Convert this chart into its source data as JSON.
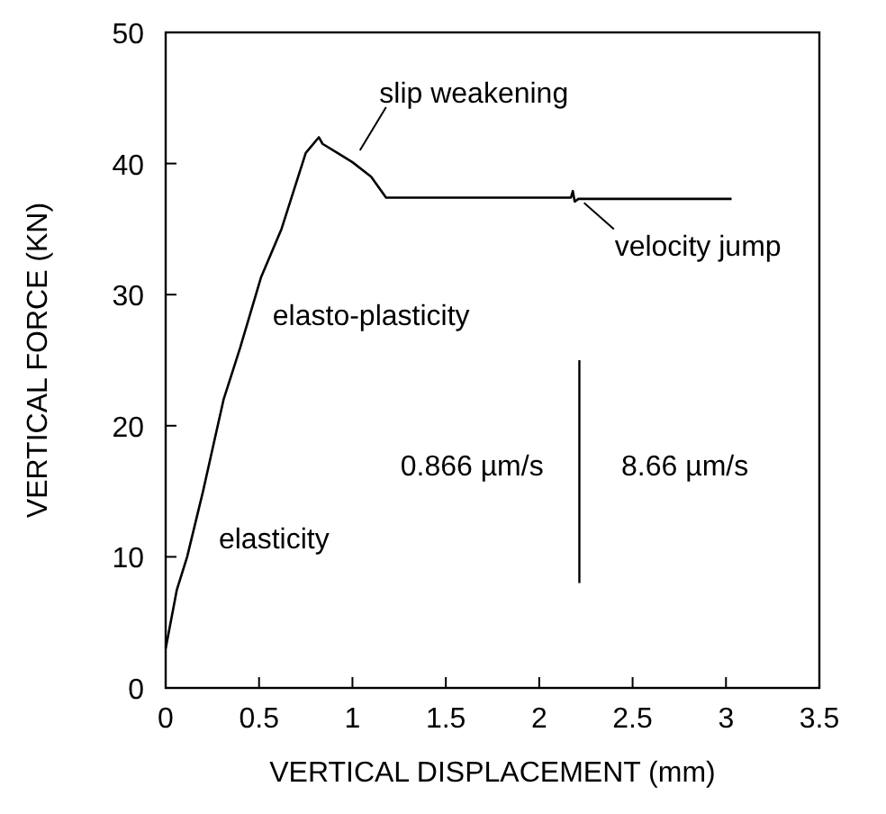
{
  "chart_data": {
    "type": "line",
    "xlabel": "VERTICAL DISPLACEMENT (mm)",
    "ylabel": "VERTICAL FORCE (KN)",
    "x": [
      0,
      0.06,
      0.115,
      0.2,
      0.31,
      0.4,
      0.51,
      0.62,
      0.75,
      0.82,
      0.84,
      0.92,
      1.0,
      1.1,
      1.18,
      1.5,
      2.0,
      2.17,
      2.18,
      2.19,
      2.21,
      2.5,
      3.03
    ],
    "series": [
      {
        "color": "#000000",
        "values": [
          3,
          7.5,
          10,
          15,
          22,
          26,
          31.3,
          35,
          40.8,
          42,
          41.5,
          40.8,
          40.1,
          39,
          37.4,
          37.4,
          37.4,
          37.4,
          37.9,
          37.1,
          37.3,
          37.3,
          37.3
        ]
      }
    ],
    "xlim": [
      0,
      3.5
    ],
    "ylim": [
      0,
      50
    ],
    "xticks": [
      0,
      0.5,
      1,
      1.5,
      2,
      2.5,
      3,
      3.5
    ],
    "yticks": [
      0,
      10,
      20,
      30,
      40,
      50
    ],
    "grid": false,
    "marker": "none",
    "line_style": "solid",
    "annotations": [
      "slip weakening",
      "velocity jump",
      "elasto-plasticity",
      "elasticity",
      "0.866 µm/s",
      "8.66 µm/s"
    ]
  }
}
